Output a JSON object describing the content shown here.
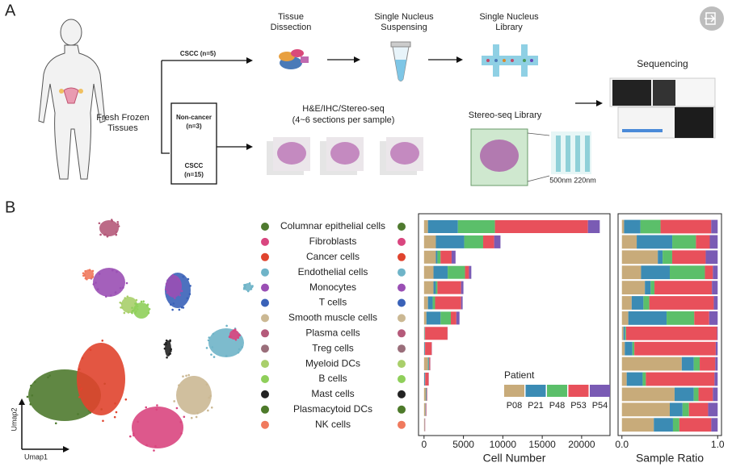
{
  "panel_a": {
    "label": "A",
    "sample_label": [
      "Fresh Frozen",
      "Tissues"
    ],
    "cscc_top": "CSCC (n=5)",
    "non_cancer": [
      "Non-cancer",
      "(n=3)"
    ],
    "cscc_bottom": [
      "CSCC",
      "(n=15)"
    ],
    "steps": [
      [
        "Tissue",
        "Dissection"
      ],
      [
        "Single Nucleus",
        "Suspensing"
      ],
      [
        "Single Nucleus",
        "Library"
      ]
    ],
    "sequencing": "Sequencing",
    "sections": [
      "H&E/IHC/Stereo-seq",
      "(4~6 sections per sample)"
    ],
    "stereo_library": "Stereo-seq Library",
    "scale_labels": [
      "500nm",
      "220nm"
    ]
  },
  "panel_b": {
    "label": "B",
    "umap_x": "Umap1",
    "umap_y": "Umap2"
  },
  "chart_data": {
    "type": "bar",
    "orientation": "horizontal",
    "stacked": true,
    "categories": [
      "Columnar epithelial cells",
      "Fibroblasts",
      "Cancer cells",
      "Endothelial cells",
      "Monocytes",
      "T cells",
      "Smooth muscle cells",
      "Plasma cells",
      "Treg cells",
      "Myeloid DCs",
      "B cells",
      "Mast cells",
      "Plasmacytoid DCs",
      "NK cells"
    ],
    "category_colors": [
      "#4f7a2f",
      "#d9467f",
      "#e0442e",
      "#6fb4c8",
      "#9a4fb4",
      "#3a62b8",
      "#cbb893",
      "#b55a7a",
      "#9a6e7a",
      "#a9cf6a",
      "#8fcf5a",
      "#222222",
      "#4d7a2a",
      "#f07a5e"
    ],
    "series": [
      {
        "name": "P08",
        "color": "#c8ab7a",
        "values": [
          500,
          1500,
          1500,
          1200,
          1200,
          500,
          300,
          50,
          30,
          500,
          30,
          220,
          150,
          50
        ]
      },
      {
        "name": "P21",
        "color": "#3b8bb4",
        "values": [
          3800,
          3600,
          200,
          1800,
          300,
          600,
          1800,
          50,
          80,
          100,
          100,
          80,
          40,
          30
        ]
      },
      {
        "name": "P48",
        "color": "#5bbf6a",
        "values": [
          4700,
          2400,
          400,
          2200,
          200,
          300,
          1300,
          30,
          20,
          50,
          20,
          20,
          20,
          10
        ]
      },
      {
        "name": "P53",
        "color": "#e8505b",
        "values": [
          11800,
          1400,
          1400,
          500,
          3000,
          3300,
          700,
          2850,
          850,
          130,
          430,
          60,
          60,
          50
        ]
      },
      {
        "name": "P54",
        "color": "#7a5bb4",
        "values": [
          1500,
          800,
          500,
          300,
          300,
          200,
          400,
          20,
          20,
          20,
          20,
          20,
          30,
          10
        ]
      }
    ],
    "xlabel": "Cell Number",
    "xlim": [
      -700,
      23600
    ],
    "xticks": [
      0,
      5000,
      10000,
      15000,
      20000
    ],
    "legend_title": "Patient",
    "legend_position": "lower right",
    "ratio": {
      "xlabel": "Sample Ratio",
      "xlim": [
        -0.04,
        1.04
      ],
      "xticks": [
        {
          "value": 0,
          "label": "0.0"
        },
        {
          "value": 1,
          "label": "1.0"
        }
      ]
    }
  }
}
